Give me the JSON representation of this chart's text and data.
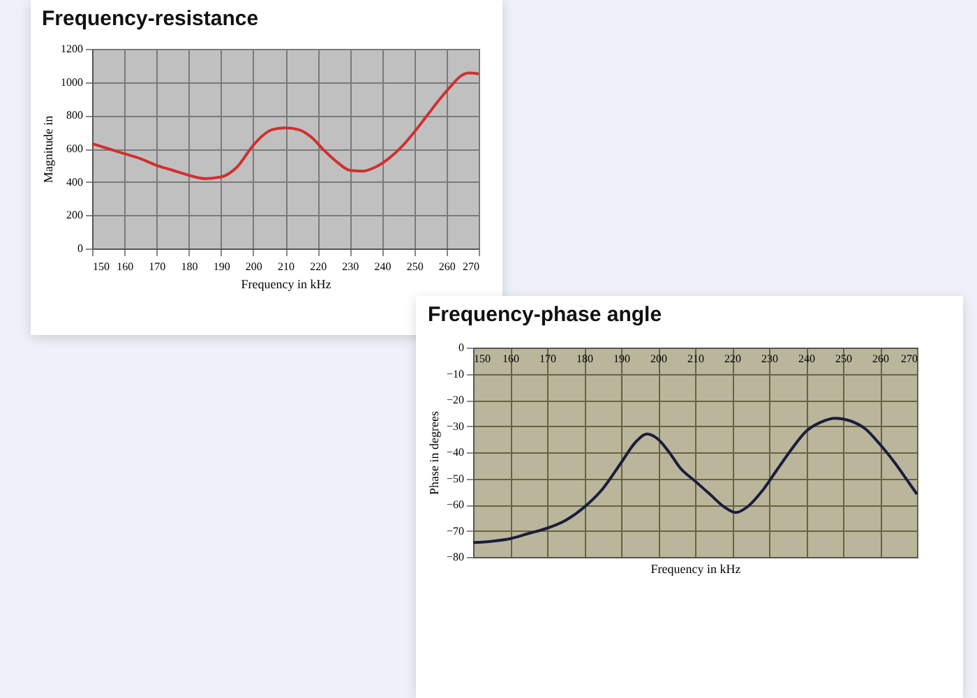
{
  "chart_data": [
    {
      "type": "line",
      "title": "Frequency-resistance",
      "xlabel": "Frequency in kHz",
      "ylabel": "Magnitude in",
      "xlim": [
        150,
        270
      ],
      "xticks": [
        150,
        160,
        170,
        180,
        190,
        200,
        210,
        220,
        230,
        240,
        250,
        260,
        270
      ],
      "ylim": [
        0,
        1200
      ],
      "yticks": [
        0,
        200,
        400,
        600,
        800,
        1000,
        1200
      ],
      "grid": true,
      "series": [
        {
          "color": "#d03030",
          "x": [
            150,
            155,
            160,
            165,
            170,
            175,
            180,
            185,
            190,
            195,
            200,
            203,
            206,
            210,
            214,
            218,
            222,
            226,
            230,
            234,
            238,
            242,
            246,
            250,
            254,
            258,
            262,
            264,
            267,
            270
          ],
          "values": [
            630,
            600,
            570,
            540,
            500,
            470,
            440,
            420,
            430,
            490,
            620,
            680,
            715,
            725,
            715,
            670,
            590,
            520,
            470,
            465,
            490,
            540,
            610,
            700,
            800,
            900,
            990,
            1030,
            1055,
            1050
          ]
        }
      ]
    },
    {
      "type": "line",
      "title": "Frequency-phase angle",
      "xlabel": "Frequency in kHz",
      "ylabel": "Phase in degrees",
      "xlim": [
        150,
        270
      ],
      "xticks": [
        150,
        160,
        170,
        180,
        190,
        200,
        210,
        220,
        230,
        240,
        250,
        260,
        270
      ],
      "ylim": [
        -80,
        0
      ],
      "yticks": [
        -80,
        -70,
        -60,
        -50,
        -40,
        -30,
        -20,
        -10,
        0
      ],
      "grid": true,
      "series": [
        {
          "color": "#1c1c3c",
          "x": [
            150,
            155,
            160,
            165,
            170,
            175,
            180,
            185,
            190,
            194,
            197,
            200,
            203,
            206,
            210,
            214,
            218,
            221,
            224,
            228,
            232,
            236,
            240,
            244,
            248,
            252,
            256,
            260,
            264,
            268,
            270
          ],
          "values": [
            -74.5,
            -74,
            -73,
            -71,
            -69,
            -66,
            -61,
            -54,
            -44,
            -36,
            -33,
            -35,
            -40,
            -46,
            -51,
            -56,
            -61,
            -63,
            -61,
            -55,
            -47,
            -39,
            -32,
            -28.5,
            -27,
            -28,
            -31,
            -37,
            -44,
            -52,
            -56
          ]
        }
      ]
    }
  ]
}
